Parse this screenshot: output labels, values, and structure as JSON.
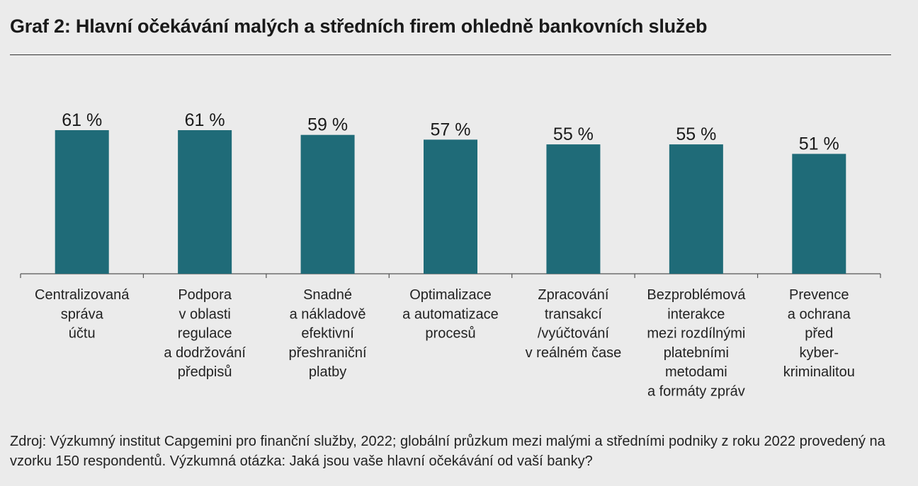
{
  "title": "Graf 2: Hlavní očekávání malých a středních firem ohledně bankovních služeb",
  "source": "Zdroj: Výzkumný institut Capgemini pro finanční služby, 2022; globální průzkum mezi malými a středními podniky z roku 2022 provedený na vzorku 150 respondentů. Výzkumná otázka: Jaká jsou vaše hlavní očekávání od vaší banky?",
  "colors": {
    "bar": "#1f6b78",
    "background": "#ebebeb",
    "axis": "#555555"
  },
  "chart_data": {
    "type": "bar",
    "title": "Graf 2: Hlavní očekávání malých a středních firem ohledně bankovních služeb",
    "categories": [
      [
        "Centralizovaná",
        "správa",
        "účtu"
      ],
      [
        "Podpora",
        "v oblasti",
        "regulace",
        "a dodržování",
        "předpisů"
      ],
      [
        "Snadné",
        "a nákladově",
        "efektivní",
        "přeshraniční",
        "platby"
      ],
      [
        "Optimalizace",
        "a automatizace",
        "procesů"
      ],
      [
        "Zpracování",
        "transakcí",
        "/vyúčtování",
        "v reálném čase"
      ],
      [
        "Bezproblémová",
        "interakce",
        "mezi rozdílnými",
        "platebními",
        "metodami",
        "a formáty zpráv"
      ],
      [
        "Prevence",
        "a ochrana",
        "před",
        "kyber-",
        "kriminalitou"
      ]
    ],
    "values": [
      61,
      61,
      59,
      57,
      55,
      55,
      51
    ],
    "value_labels": [
      "61 %",
      "61 %",
      "59 %",
      "57 %",
      "55 %",
      "55 %",
      "51 %"
    ],
    "unit": "%",
    "xlabel": "",
    "ylabel": "",
    "grid": false,
    "legend": "none"
  }
}
